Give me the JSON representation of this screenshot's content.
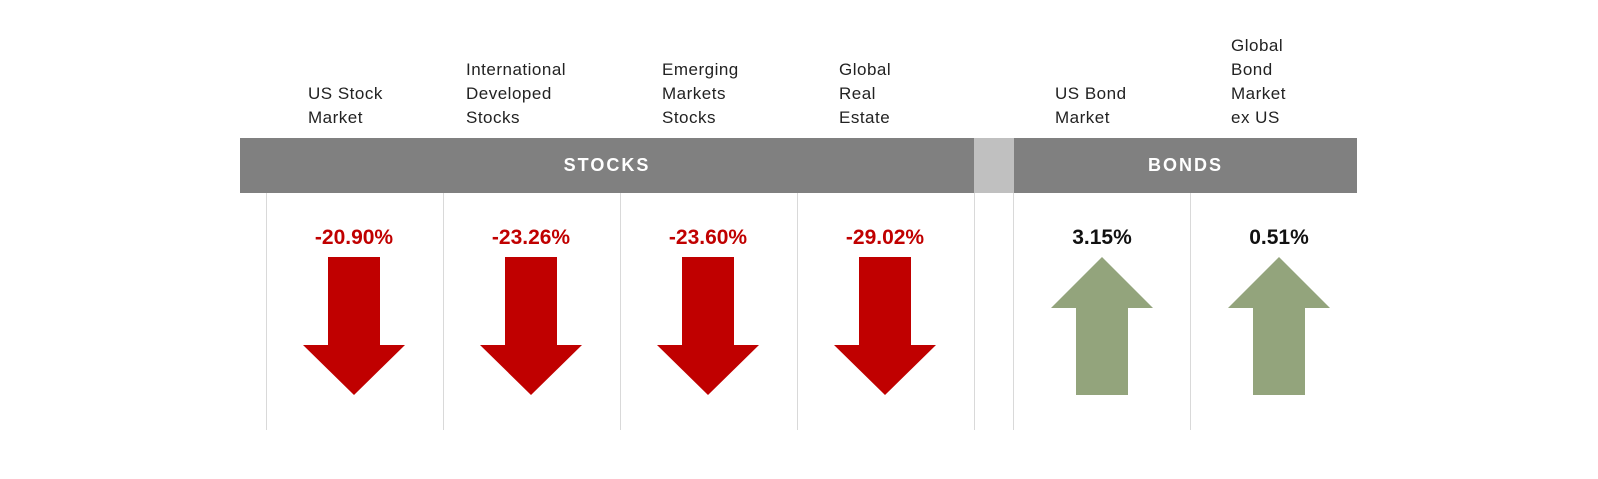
{
  "chart_data": {
    "type": "table",
    "groups": [
      {
        "label": "STOCKS",
        "categories": [
          "US Stock Market",
          "International Developed Stocks",
          "Emerging Markets Stocks",
          "Global Real Estate"
        ]
      },
      {
        "label": "BONDS",
        "categories": [
          "US Bond Market",
          "Global Bond Market ex US"
        ]
      }
    ],
    "columns": [
      {
        "label": "US Stock\nMarket",
        "value_label": "-20.90%",
        "value": -20.9,
        "direction": "down"
      },
      {
        "label": "International\nDeveloped\nStocks",
        "value_label": "-23.26%",
        "value": -23.26,
        "direction": "down"
      },
      {
        "label": "Emerging\nMarkets\nStocks",
        "value_label": "-23.60%",
        "value": -23.6,
        "direction": "down"
      },
      {
        "label": "Global\nReal\nEstate",
        "value_label": "-29.02%",
        "value": -29.02,
        "direction": "down"
      },
      {
        "label": "US Bond\nMarket",
        "value_label": "3.15%",
        "value": 3.15,
        "direction": "up"
      },
      {
        "label": "Global\nBond\nMarket\nex US",
        "value_label": "0.51%",
        "value": 0.51,
        "direction": "up"
      }
    ]
  },
  "colors": {
    "band": "#808080",
    "band_gap": "#c0c0c0",
    "negative": "#c00000",
    "positive_arrow": "#93a47c",
    "positive_text": "#111111"
  },
  "icons": {
    "down": "down-arrow-icon",
    "up": "up-arrow-icon"
  }
}
